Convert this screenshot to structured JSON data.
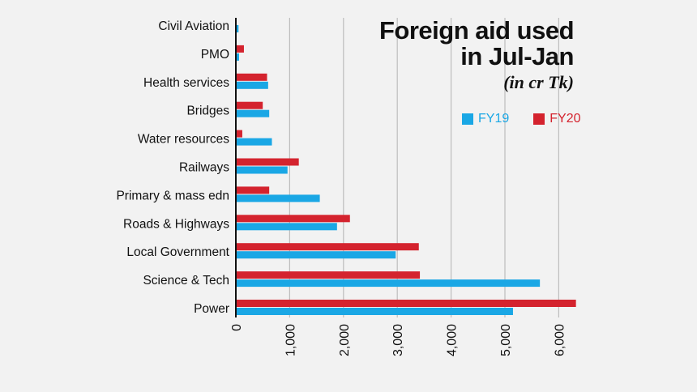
{
  "chart_data": {
    "type": "bar",
    "orientation": "horizontal",
    "title_lines": [
      "Foreign aid used",
      "in Jul-Jan"
    ],
    "subtitle": "(in cr Tk)",
    "categories": [
      "Civil Aviation",
      "PMO",
      "Health services",
      "Bridges",
      "Water resources",
      "Railways",
      "Primary & mass edn",
      "Roads & Highways",
      "Local Government",
      "Science & Tech",
      "Power"
    ],
    "series": [
      {
        "name": "FY19",
        "color": "#1aa7e5",
        "values": [
          50,
          60,
          600,
          620,
          670,
          960,
          1560,
          1880,
          2970,
          5650,
          5150
        ]
      },
      {
        "name": "FY20",
        "color": "#d4232e",
        "values": [
          0,
          150,
          580,
          500,
          120,
          1170,
          620,
          2120,
          3400,
          3420,
          6320
        ]
      }
    ],
    "xlim": [
      0,
      6300
    ],
    "xticks": [
      "0",
      "1,000",
      "2,000",
      "3,000",
      "4,000",
      "5,000",
      "6,000"
    ],
    "xtick_values": [
      0,
      1000,
      2000,
      3000,
      4000,
      5000,
      6000
    ],
    "grid": true,
    "legend_position": "top-right"
  }
}
